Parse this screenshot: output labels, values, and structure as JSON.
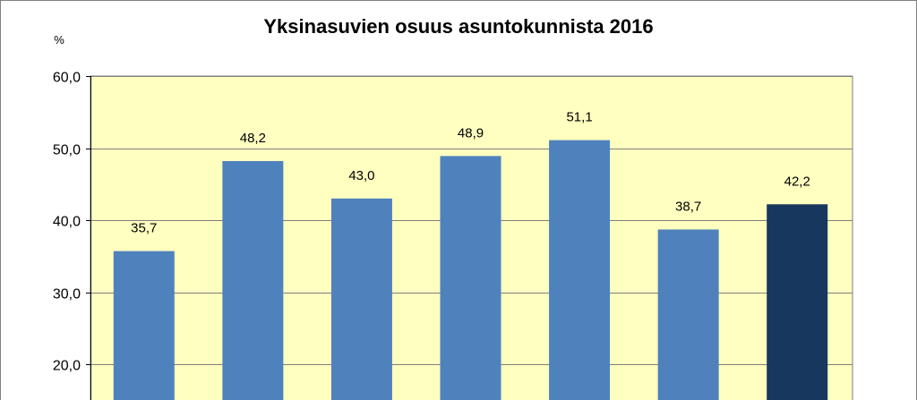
{
  "chart_data": {
    "type": "bar",
    "title": "Yksinasuvien osuus asuntokunnista   2016",
    "unit_label": "%",
    "ylim": [
      20,
      60
    ],
    "yticks": [
      "60,0",
      "50,0",
      "40,0",
      "30,0",
      "20,0"
    ],
    "ytick_values": [
      60,
      50,
      40,
      30,
      20
    ],
    "values": [
      35.7,
      48.2,
      43.0,
      48.9,
      51.1,
      38.7,
      42.2
    ],
    "data_labels": [
      "35,7",
      "48,2",
      "43,0",
      "48,9",
      "51,1",
      "38,7",
      "42,2"
    ],
    "grid": true,
    "colors": {
      "plot_background": "#ffffc0",
      "bar": "#4f81bd",
      "bar_highlight": "#17375e",
      "gridline": "#7f7f7f",
      "outer_border": "#808080"
    },
    "highlight_index": 6
  }
}
